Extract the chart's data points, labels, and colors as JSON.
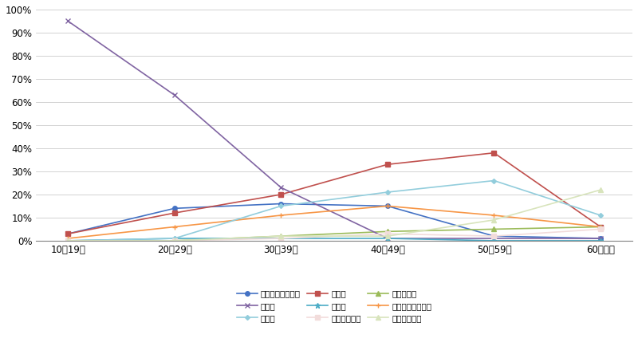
{
  "categories": [
    "10～19歳",
    "20～29歳",
    "30～39歳",
    "40～49歳",
    "50～59歳",
    "60歳以上"
  ],
  "series": [
    {
      "label": "就職・転職・転業",
      "color": "#4472C4",
      "marker": "o",
      "markersize": 4,
      "values": [
        3,
        14,
        16,
        15,
        2,
        1
      ]
    },
    {
      "label": "転　勤",
      "color": "#C0504D",
      "marker": "s",
      "markersize": 4,
      "values": [
        3,
        12,
        20,
        33,
        38,
        6
      ]
    },
    {
      "label": "退職・廃業",
      "color": "#9BBB59",
      "marker": "^",
      "markersize": 4,
      "values": [
        0,
        0,
        2,
        4,
        5,
        6
      ]
    },
    {
      "label": "就　学",
      "color": "#8064A2",
      "marker": "x",
      "markersize": 5,
      "values": [
        95,
        63,
        23,
        1,
        1,
        1
      ]
    },
    {
      "label": "卒　業",
      "color": "#4BACC6",
      "marker": "*",
      "markersize": 5,
      "values": [
        0,
        1,
        1,
        1,
        0,
        0
      ]
    },
    {
      "label": "結婚・離婚・縁組",
      "color": "#F79646",
      "marker": "+",
      "markersize": 5,
      "values": [
        1,
        6,
        11,
        15,
        11,
        6
      ]
    },
    {
      "label": "住　宅",
      "color": "#92CDDC",
      "marker": "D",
      "markersize": 3,
      "values": [
        0,
        1,
        15,
        21,
        26,
        11
      ]
    },
    {
      "label": "交通の利便性",
      "color": "#F2DCDB",
      "marker": "s",
      "markersize": 4,
      "values": [
        0,
        0,
        1,
        3,
        2,
        5
      ]
    },
    {
      "label": "生活の利便性",
      "color": "#D8E4BC",
      "marker": "^",
      "markersize": 4,
      "values": [
        0,
        0,
        2,
        2,
        9,
        22
      ]
    }
  ],
  "ylim": [
    0,
    100
  ],
  "yticks": [
    0,
    10,
    20,
    30,
    40,
    50,
    60,
    70,
    80,
    90,
    100
  ],
  "bg_color": "#FFFFFF",
  "grid_color": "#C0C0C0",
  "legend_ncol": 3,
  "linewidth": 1.2
}
